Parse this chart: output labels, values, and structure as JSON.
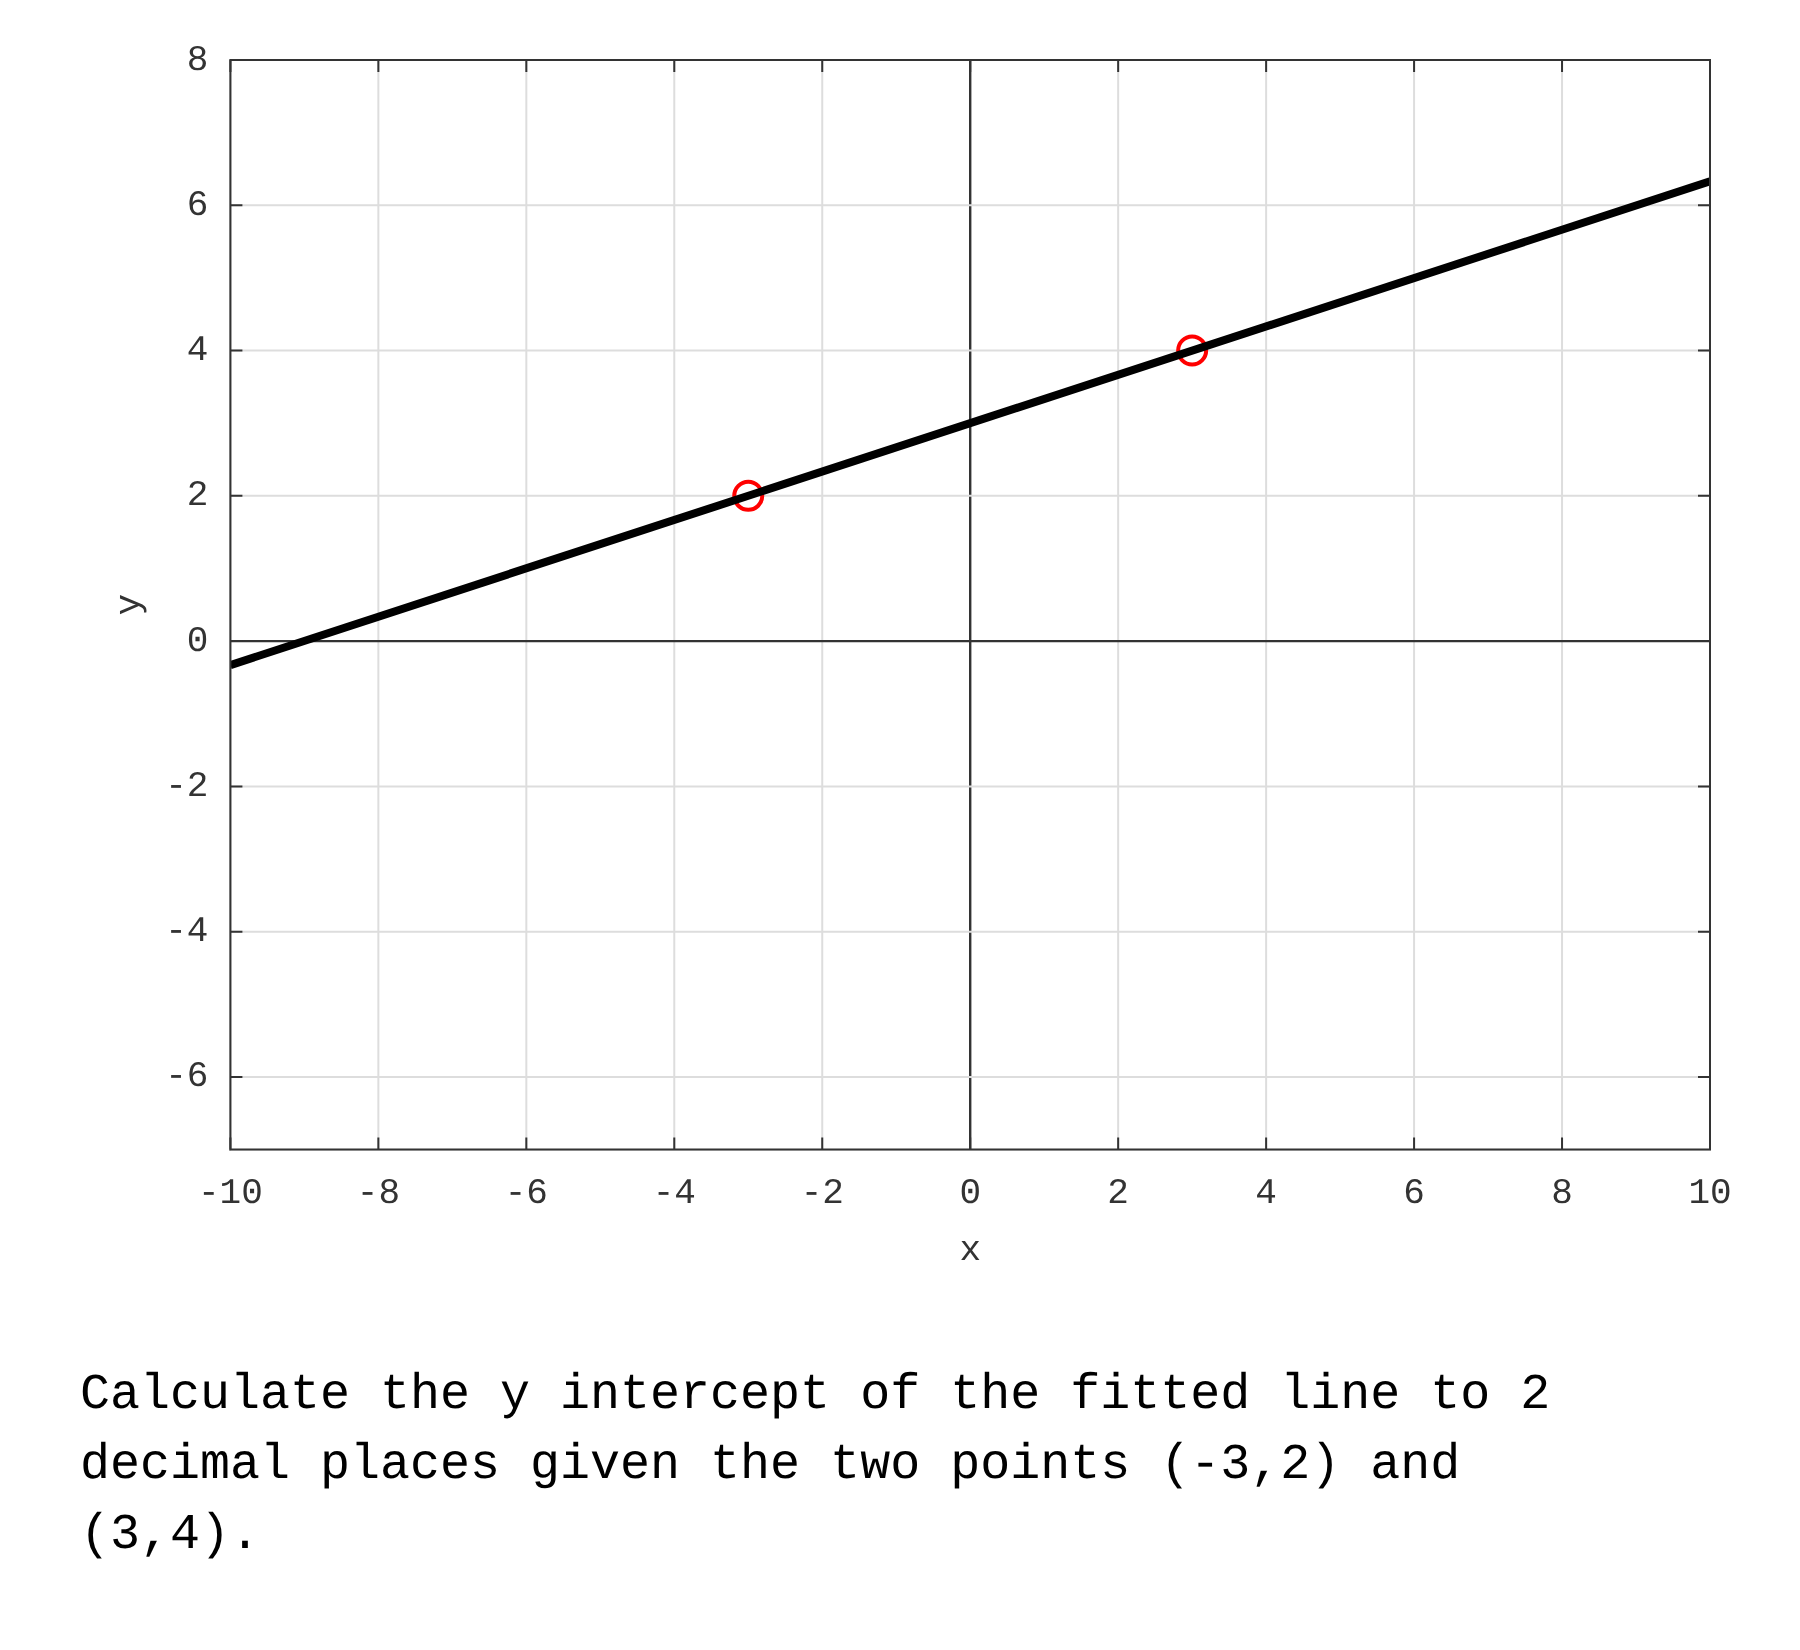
{
  "chart_data": {
    "type": "line",
    "xlabel": "x",
    "ylabel": "y",
    "xlim": [
      -10,
      10
    ],
    "ylim": [
      -7,
      8
    ],
    "xticks": [
      -10,
      -8,
      -6,
      -4,
      -2,
      0,
      2,
      4,
      6,
      8,
      10
    ],
    "yticks": [
      -6,
      -4,
      -2,
      0,
      2,
      4,
      6,
      8
    ],
    "grid": true,
    "legend": false,
    "series": [
      {
        "type": "line",
        "color": "#000000",
        "x": [
          -10,
          10
        ],
        "values": [
          -0.33,
          6.33
        ],
        "marker": "none",
        "line_style": "solid"
      },
      {
        "type": "scatter",
        "color": "#ff0000",
        "x": [
          -3,
          3
        ],
        "values": [
          2,
          4
        ],
        "marker": "circle"
      }
    ],
    "annotations": [
      "Calculate the y intercept of the fitted line to 2 decimal places given the two points (-3,2) and (3,4)."
    ]
  }
}
